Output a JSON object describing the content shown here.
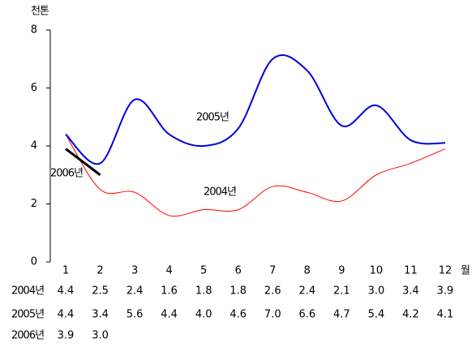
{
  "chart_data": {
    "type": "line",
    "y_label": "천톤",
    "x_label": "월",
    "categories": [
      "1",
      "2",
      "3",
      "4",
      "5",
      "6",
      "7",
      "8",
      "9",
      "10",
      "11",
      "12"
    ],
    "ylim": [
      0,
      8
    ],
    "yticks": [
      0,
      2,
      4,
      6,
      8
    ],
    "series": [
      {
        "name": "2004년",
        "color": "#ff0000",
        "smooth": true,
        "values": [
          4.4,
          2.5,
          2.4,
          1.6,
          1.8,
          1.8,
          2.6,
          2.4,
          2.1,
          3.0,
          3.4,
          3.9
        ],
        "value_labels": [
          "4.4",
          "2.5",
          "2.4",
          "1.6",
          "1.8",
          "1.8",
          "2.6",
          "2.4",
          "2.1",
          "3.0",
          "3.4",
          "3.9"
        ]
      },
      {
        "name": "2005년",
        "color": "#0000dd",
        "smooth": true,
        "values": [
          4.4,
          3.4,
          5.6,
          4.4,
          4.0,
          4.6,
          7.0,
          6.6,
          4.7,
          5.4,
          4.2,
          4.1
        ],
        "value_labels": [
          "4.4",
          "3.4",
          "5.6",
          "4.4",
          "4.0",
          "4.6",
          "7.0",
          "6.6",
          "4.7",
          "5.4",
          "4.2",
          "4.1"
        ]
      },
      {
        "name": "2006년",
        "color": "#000000",
        "smooth": false,
        "values": [
          3.9,
          3.0,
          null,
          null,
          null,
          null,
          null,
          null,
          null,
          null,
          null,
          null
        ],
        "value_labels": [
          "3.9",
          "3.0",
          null,
          null,
          null,
          null,
          null,
          null,
          null,
          null,
          null,
          null
        ]
      }
    ]
  }
}
